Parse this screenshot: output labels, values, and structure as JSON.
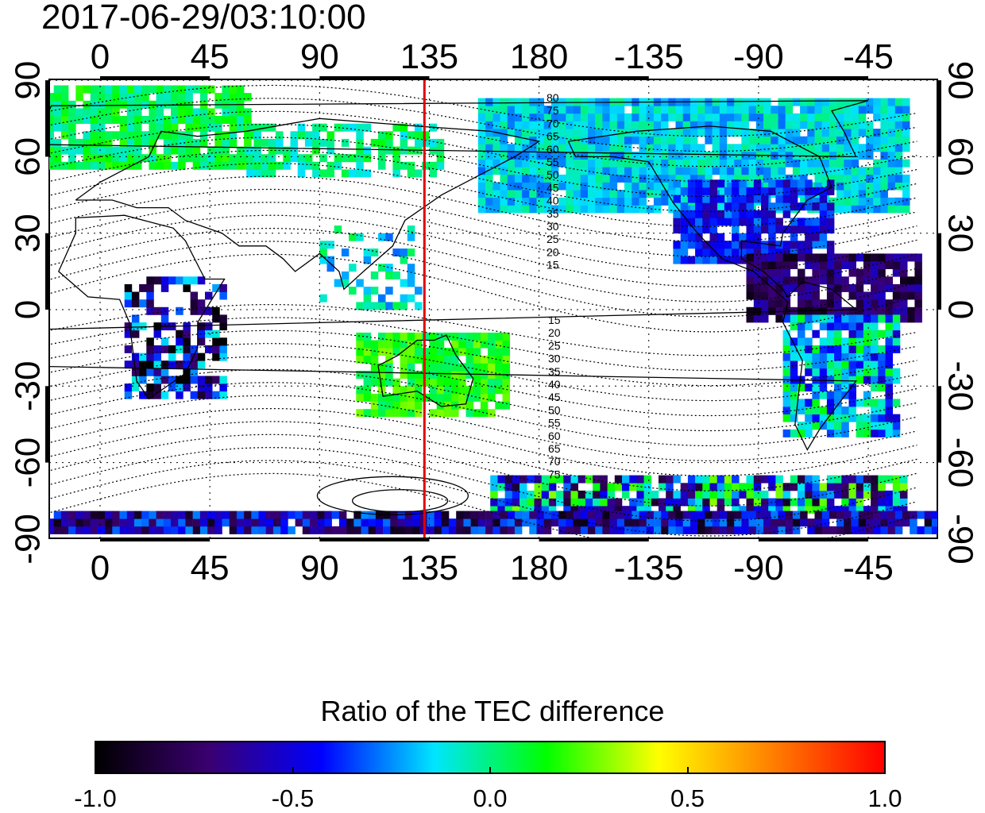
{
  "timestamp": "2017-06-29/03:10:00",
  "map": {
    "top_longitude_labels": [
      "0",
      "45",
      "90",
      "135",
      "180",
      "-135",
      "-90",
      "-45"
    ],
    "bottom_longitude_labels": [
      "0",
      "45",
      "90",
      "135",
      "180",
      "-135",
      "-90",
      "-45"
    ],
    "left_latitude_labels": [
      "90",
      "60",
      "30",
      "0",
      "-30",
      "-60",
      "-90"
    ],
    "right_latitude_labels": [
      "90",
      "60",
      "30",
      "0",
      "-30",
      "-60",
      "-90"
    ],
    "marker_meridian_longitude": 133,
    "marker_color": "#e00000",
    "contour_labels_north": [
      "80",
      "75",
      "70",
      "65",
      "60",
      "55",
      "50",
      "45",
      "40",
      "35",
      "30",
      "25",
      "20",
      "15"
    ],
    "contour_labels_south": [
      "15",
      "20",
      "25",
      "30",
      "35",
      "40",
      "45",
      "50",
      "55",
      "60",
      "65",
      "70",
      "75"
    ]
  },
  "colorbar": {
    "title": "Ratio of the TEC difference",
    "tick_labels": [
      "-1.0",
      "-0.5",
      "0.0",
      "0.5",
      "1.0"
    ],
    "range": [
      -1.0,
      1.0
    ],
    "colors": [
      "#000000",
      "#3a0070",
      "#0000ff",
      "#00e5ff",
      "#00ff00",
      "#ffff00",
      "#ff8000",
      "#ff0000"
    ]
  }
}
